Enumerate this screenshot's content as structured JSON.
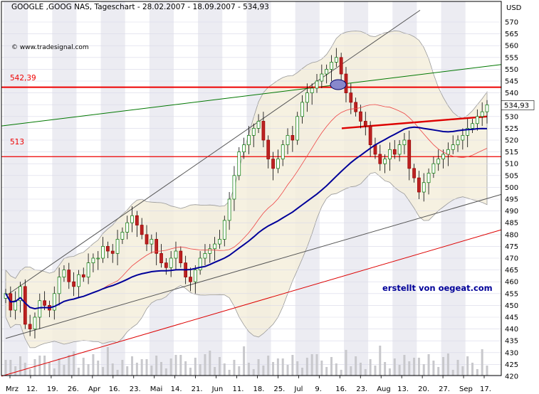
{
  "chart_data": {
    "type": "candlestick",
    "title": "GOOGLE ,GOOG NAS, Tageschart - 28.02.2007 - 18.09.2007 - 534,93",
    "watermark": "© www.tradesignal.com",
    "credit": "erstellt von oegeat.com",
    "y_unit": "USD",
    "ylim": [
      420,
      575
    ],
    "last_price": "534,93",
    "y_ticks": [
      570,
      565,
      560,
      555,
      550,
      545,
      540,
      535,
      530,
      525,
      520,
      515,
      510,
      505,
      500,
      495,
      490,
      485,
      480,
      475,
      470,
      465,
      460,
      455,
      450,
      445,
      440,
      435,
      430,
      425,
      420
    ],
    "x_ticks": [
      "Mrz",
      "12.",
      "19.",
      "26.",
      "Apr",
      "16.",
      "23.",
      "Mai",
      "14.",
      "21.",
      "Jun",
      "11.",
      "18.",
      "25.",
      "Jul",
      "9.",
      "16.",
      "23.",
      "Aug",
      "13.",
      "20.",
      "27.",
      "Sep",
      "17."
    ],
    "levels": [
      {
        "label": "542,39",
        "value": 542.39
      },
      {
        "label": "513",
        "value": 513
      }
    ],
    "close_series": [
      455,
      448,
      452,
      458,
      442,
      440,
      445,
      452,
      450,
      448,
      455,
      462,
      465,
      460,
      458,
      463,
      462,
      468,
      470,
      470,
      475,
      473,
      472,
      478,
      481,
      485,
      488,
      484,
      480,
      476,
      478,
      472,
      468,
      466,
      470,
      473,
      468,
      462,
      460,
      465,
      470,
      472,
      474,
      476,
      478,
      486,
      495,
      505,
      515,
      518,
      522,
      525,
      528,
      520,
      512,
      508,
      512,
      518,
      522,
      520,
      530,
      536,
      540,
      542,
      545,
      548,
      550,
      553,
      555,
      548,
      540,
      536,
      532,
      528,
      526,
      518,
      514,
      510,
      512,
      516,
      514,
      518,
      520,
      508,
      504,
      498,
      502,
      506,
      510,
      512,
      514,
      516,
      518,
      520,
      522,
      525,
      527,
      530,
      532,
      534.93
    ]
  }
}
